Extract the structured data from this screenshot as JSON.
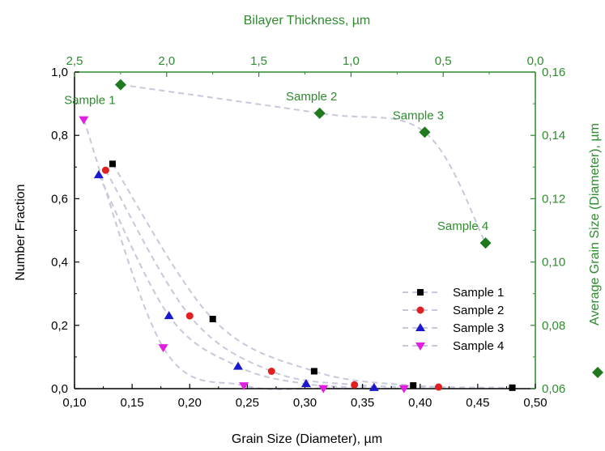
{
  "chart_data": {
    "type": "scatter",
    "colors": {
      "axis": "#000000",
      "secondary_axis": "#2e8b2e",
      "curve": "#c8c8dc"
    },
    "x_axis": {
      "label": "Grain Size (Diameter), µm",
      "lim": [
        0.1,
        0.5
      ],
      "ticks": [
        0.1,
        0.15,
        0.2,
        0.25,
        0.3,
        0.35,
        0.4,
        0.45,
        0.5
      ],
      "tick_labels": [
        "0,10",
        "0,15",
        "0,20",
        "0,25",
        "0,30",
        "0,35",
        "0,40",
        "0,45",
        "0,50"
      ]
    },
    "y_axis": {
      "label": "Number Fraction",
      "lim": [
        0.0,
        1.0
      ],
      "ticks": [
        0.0,
        0.2,
        0.4,
        0.6,
        0.8,
        1.0
      ],
      "tick_labels": [
        "0,0",
        "0,2",
        "0,4",
        "0,6",
        "0,8",
        "1,0"
      ]
    },
    "x2_axis": {
      "label": "Bilayer Thickness, µm",
      "lim": [
        2.5,
        0.0
      ],
      "ticks": [
        2.5,
        2.0,
        1.5,
        1.0,
        0.5,
        0.0
      ],
      "tick_labels": [
        "2,5",
        "2,0",
        "1,5",
        "1,0",
        "0,5",
        "0,0"
      ]
    },
    "y2_axis": {
      "label": "Average Grain Size (Diameter), µm",
      "lim": [
        0.06,
        0.16
      ],
      "ticks": [
        0.06,
        0.08,
        0.1,
        0.12,
        0.14,
        0.16
      ],
      "tick_labels": [
        "0,06",
        "0,08",
        "0,10",
        "0,12",
        "0,14",
        "0,16"
      ]
    },
    "legend": {
      "placement": "bottom-right"
    },
    "series": [
      {
        "name": "Sample 1",
        "marker": "square",
        "color": "#000000",
        "x": [
          0.133,
          0.22,
          0.308,
          0.394,
          0.48
        ],
        "y": [
          0.71,
          0.22,
          0.055,
          0.01,
          0.003
        ]
      },
      {
        "name": "Sample 2",
        "marker": "circle",
        "color": "#e02020",
        "x": [
          0.127,
          0.2,
          0.271,
          0.343,
          0.416
        ],
        "y": [
          0.69,
          0.23,
          0.055,
          0.012,
          0.005
        ]
      },
      {
        "name": "Sample 3",
        "marker": "triangle-up",
        "color": "#1a1acc",
        "x": [
          0.121,
          0.182,
          0.242,
          0.301,
          0.36
        ],
        "y": [
          0.675,
          0.23,
          0.07,
          0.015,
          0.003
        ]
      },
      {
        "name": "Sample 4",
        "marker": "triangle-down",
        "color": "#e020e0",
        "x": [
          0.108,
          0.177,
          0.247,
          0.316,
          0.386
        ],
        "y": [
          0.85,
          0.13,
          0.01,
          0.001,
          0.001
        ]
      }
    ],
    "secondary_series": {
      "marker": "diamond",
      "color": "#1f7a1f",
      "points": [
        {
          "label": "Sample 1",
          "x": 2.25,
          "y": 0.156
        },
        {
          "label": "Sample 2",
          "x": 1.17,
          "y": 0.147
        },
        {
          "label": "Sample 3",
          "x": 0.6,
          "y": 0.141
        },
        {
          "label": "Sample 4",
          "x": 0.27,
          "y": 0.106
        }
      ]
    }
  }
}
